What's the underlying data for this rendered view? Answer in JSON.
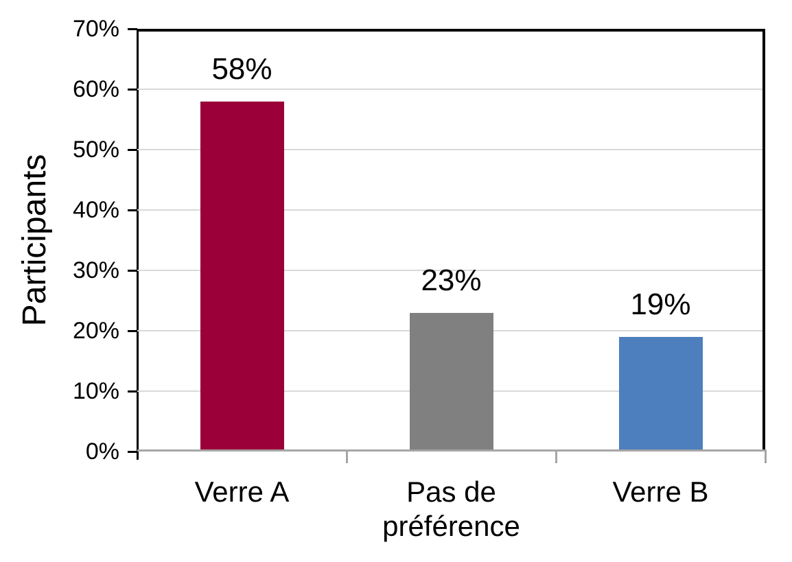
{
  "chart_data": {
    "type": "bar",
    "categories": [
      "Verre A",
      "Pas de\npréférence",
      "Verre B"
    ],
    "values": [
      58,
      23,
      19
    ],
    "data_labels": [
      "58%",
      "23%",
      "19%"
    ],
    "bar_colors": [
      "#9b0038",
      "#808080",
      "#4d7ebd"
    ],
    "title": "",
    "xlabel": "",
    "ylabel": "Participants",
    "ylim": [
      0,
      70
    ],
    "ytick_step": 10,
    "ytick_labels": [
      "0%",
      "10%",
      "20%",
      "30%",
      "40%",
      "50%",
      "60%",
      "70%"
    ],
    "grid": true,
    "gridline_color": "#d9d9d9",
    "left_axis_color": "#000000",
    "bottom_axis_color": "#a6a6a6",
    "plot_border_color": "#000000",
    "legend_position": "none"
  }
}
